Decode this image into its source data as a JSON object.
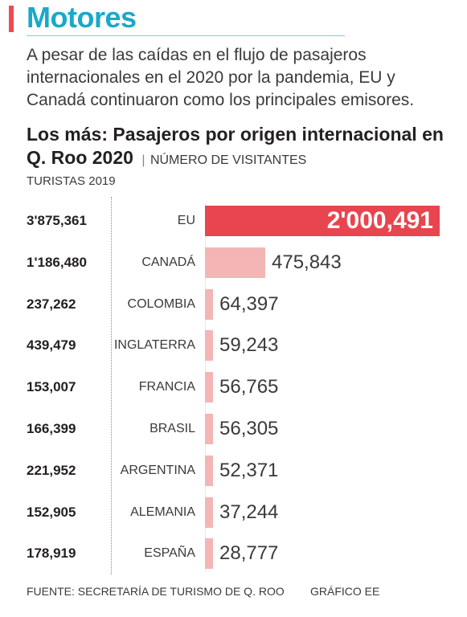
{
  "section": {
    "title": "Motores"
  },
  "intro": "A pesar de las caídas en el flujo de pasajeros internacionales en el 2020 por la pandemia, EU y Canadá continuaron como los principales emisores.",
  "colors": {
    "accent": "#ef4a4f",
    "title": "#19a9c9",
    "bar_highlight": "#e8454e",
    "bar": "#f3b6b4"
  },
  "chart_data": {
    "type": "bar",
    "orientation": "horizontal",
    "title": "Los más: Pasajeros por origen internacional en Q. Roo 2020",
    "unit": "NÚMERO DE VISITANTES",
    "column_header_2019": "TURISTAS 2019",
    "categories": [
      "EU",
      "CANADÁ",
      "COLOMBIA",
      "INGLATERRA",
      "FRANCIA",
      "BRASIL",
      "ARGENTINA",
      "ALEMANIA",
      "ESPAÑA"
    ],
    "values": [
      2000491,
      475843,
      64397,
      59243,
      56765,
      56305,
      52371,
      37244,
      28777
    ],
    "value_labels": [
      "2'000,491",
      "475,843",
      "64,397",
      "59,243",
      "56,765",
      "56,305",
      "52,371",
      "37,244",
      "28,777"
    ],
    "tourists_2019": [
      "3'875,361",
      "1'186,480",
      "237,262",
      "439,479",
      "153,007",
      "166,399",
      "221,952",
      "152,905",
      "178,919"
    ]
  },
  "footer": {
    "source": "FUENTE: SECRETARÍA DE TURISMO DE Q. ROO",
    "credit": "GRÁFICO EE"
  }
}
